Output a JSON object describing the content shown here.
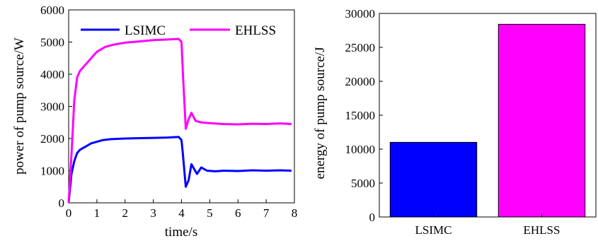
{
  "chart_data": [
    {
      "type": "line",
      "xlabel": "time/s",
      "ylabel": "power of pump source/W",
      "xlim": [
        0,
        8
      ],
      "ylim": [
        0,
        6000
      ],
      "xticks": [
        "0",
        "1",
        "2",
        "3",
        "4",
        "5",
        "6",
        "7",
        "8"
      ],
      "yticks": [
        "0",
        "1000",
        "2000",
        "3000",
        "4000",
        "5000",
        "6000"
      ],
      "grid": false,
      "legend_position": "top",
      "series": [
        {
          "name": "LSIMC",
          "color": "#0000ff",
          "x": [
            0,
            0.1,
            0.2,
            0.3,
            0.4,
            0.6,
            0.8,
            1.0,
            1.2,
            1.5,
            2.0,
            2.5,
            3.0,
            3.5,
            3.9,
            4.0,
            4.05,
            4.15,
            4.25,
            4.35,
            4.45,
            4.55,
            4.7,
            4.9,
            5.2,
            5.5,
            6.0,
            6.5,
            7.0,
            7.5,
            7.9
          ],
          "y": [
            0,
            900,
            1300,
            1550,
            1650,
            1750,
            1850,
            1900,
            1950,
            1980,
            2000,
            2010,
            2020,
            2030,
            2050,
            1950,
            1500,
            500,
            700,
            1200,
            1050,
            900,
            1100,
            1000,
            980,
            1000,
            990,
            1010,
            1000,
            1010,
            1000
          ]
        },
        {
          "name": "EHLSS",
          "color": "#ff00ff",
          "x": [
            0,
            0.1,
            0.2,
            0.3,
            0.4,
            0.6,
            0.8,
            1.0,
            1.3,
            1.6,
            2.0,
            2.5,
            3.0,
            3.5,
            3.9,
            4.0,
            4.05,
            4.15,
            4.25,
            4.35,
            4.5,
            4.7,
            5.0,
            5.5,
            6.0,
            6.5,
            7.0,
            7.5,
            7.9
          ],
          "y": [
            0,
            1500,
            3200,
            3900,
            4100,
            4300,
            4500,
            4700,
            4850,
            4920,
            4980,
            5020,
            5060,
            5080,
            5100,
            5000,
            4000,
            2300,
            2600,
            2800,
            2550,
            2500,
            2480,
            2450,
            2440,
            2460,
            2450,
            2470,
            2450
          ]
        }
      ]
    },
    {
      "type": "bar",
      "ylabel": "energy of pump source/J",
      "categories": [
        "LSIMC",
        "EHLSS"
      ],
      "values": [
        11000,
        28400
      ],
      "colors": [
        "#0000ff",
        "#ff00ff"
      ],
      "ylim": [
        0,
        30000
      ],
      "yticks": [
        "0",
        "5000",
        "10000",
        "15000",
        "20000",
        "25000",
        "30000"
      ],
      "grid": false
    }
  ]
}
